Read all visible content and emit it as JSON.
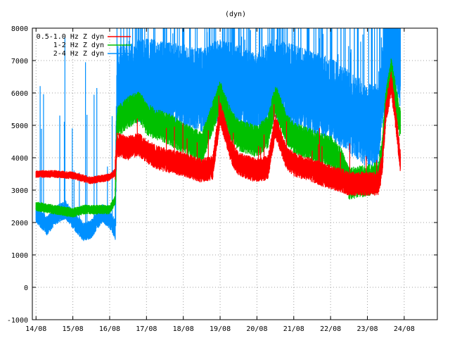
{
  "chart_data": {
    "type": "line",
    "title": "(dyn)",
    "xlabel": "",
    "ylabel": "",
    "ylim": [
      -1000,
      8000
    ],
    "xlim_days": [
      13.9,
      24.9
    ],
    "y_ticks": [
      -1000,
      0,
      1000,
      2000,
      3000,
      4000,
      5000,
      6000,
      7000,
      8000
    ],
    "x_ticks": [
      "14/08",
      "15/08",
      "16/08",
      "17/08",
      "18/08",
      "19/08",
      "20/08",
      "21/08",
      "22/08",
      "23/08",
      "24/08"
    ],
    "grid": true,
    "legend_position": "top-left",
    "series": [
      {
        "name": "0.5-1.0 Hz Z dyn",
        "color": "#ff0000",
        "x": [
          14.0,
          14.5,
          15.0,
          15.5,
          16.0,
          16.15,
          16.2,
          16.5,
          16.8,
          17.0,
          17.3,
          17.6,
          18.0,
          18.5,
          18.8,
          19.0,
          19.3,
          19.5,
          20.0,
          20.3,
          20.5,
          20.8,
          21.0,
          21.5,
          22.0,
          22.3,
          22.5,
          23.0,
          23.3,
          23.4,
          23.5,
          23.65,
          23.8,
          23.9
        ],
        "values": [
          3500,
          3500,
          3450,
          3300,
          3400,
          3550,
          4400,
          4300,
          4400,
          4200,
          4000,
          3900,
          3800,
          3600,
          3700,
          5400,
          4200,
          3800,
          3600,
          3700,
          5000,
          4000,
          3800,
          3600,
          3400,
          3300,
          3200,
          3200,
          3200,
          3800,
          5400,
          6300,
          4900,
          3800
        ]
      },
      {
        "name": "1-2 Hz Z dyn",
        "color": "#00c000",
        "x": [
          14.0,
          14.5,
          15.0,
          15.3,
          15.7,
          16.0,
          16.15,
          16.2,
          16.5,
          16.8,
          17.0,
          17.3,
          17.6,
          18.0,
          18.5,
          19.0,
          19.3,
          19.5,
          20.0,
          20.3,
          20.5,
          20.8,
          21.0,
          21.5,
          22.0,
          22.3,
          22.5,
          23.0,
          23.3,
          23.4,
          23.5,
          23.65,
          23.8,
          23.9
        ],
        "values": [
          2500,
          2400,
          2300,
          2400,
          2400,
          2400,
          2700,
          5100,
          5400,
          5600,
          5200,
          5000,
          4900,
          4600,
          4300,
          5900,
          5000,
          4700,
          4500,
          4800,
          5800,
          4900,
          4600,
          4400,
          4200,
          3800,
          3200,
          3300,
          3400,
          4200,
          5600,
          6600,
          5600,
          5000
        ]
      },
      {
        "name": "2-4 Hz Z dyn",
        "color": "#0090ff",
        "x": [
          14.0,
          14.3,
          14.5,
          14.8,
          15.0,
          15.3,
          15.5,
          15.8,
          16.0,
          16.15,
          16.2,
          16.5,
          17.0,
          17.5,
          18.0,
          18.5,
          19.0,
          19.5,
          20.0,
          20.5,
          21.0,
          21.5,
          22.0,
          22.5,
          23.0,
          23.3,
          23.4,
          23.5,
          23.65,
          23.8,
          23.9
        ],
        "values": [
          2300,
          1900,
          2200,
          2400,
          2100,
          1700,
          1800,
          2300,
          2100,
          1800,
          6200,
          6300,
          6400,
          6300,
          6200,
          6100,
          6400,
          6200,
          6000,
          6400,
          6200,
          6000,
          5800,
          5400,
          5000,
          5000,
          6200,
          7000,
          7400,
          7200,
          6800
        ]
      }
    ]
  }
}
